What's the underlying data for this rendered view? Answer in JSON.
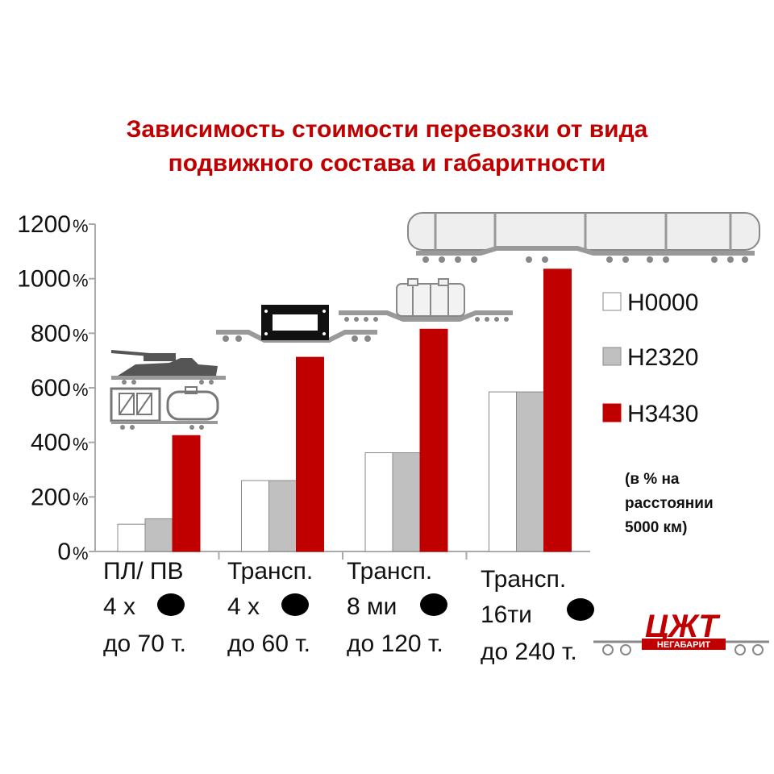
{
  "title_lines": [
    "Зависимость стоимости перевозки от вида",
    "подвижного состава и габаритности"
  ],
  "note_lines": [
    "(в % на",
    "расстоянии",
    "5000 км)"
  ],
  "logo_text": "ЦЖТ",
  "logo_subtext": "НЕГАБАРИТ",
  "colors": {
    "title": "#c00000",
    "h0000": "#ffffff",
    "h2320": "#c0c0c0",
    "h3430": "#c00000",
    "axis": "#aaaaaa"
  },
  "chart_data": {
    "type": "bar",
    "title": "Зависимость стоимости перевозки от вида подвижного состава и габаритности",
    "ylim": [
      0,
      1200
    ],
    "yticks": [
      0,
      200,
      400,
      600,
      800,
      1000,
      1200
    ],
    "ytick_number_labels": [
      "0",
      "200",
      "400",
      "600",
      "800",
      "1000",
      "1200"
    ],
    "ytick_unit": "%",
    "categories": [
      [
        "ПЛ/ ПВ",
        "4 х",
        "до 70 т."
      ],
      [
        "Трансп.",
        "4 х",
        "до 60 т."
      ],
      [
        "Трансп.",
        "8 ми",
        "до 120 т."
      ],
      [
        "Трансп.",
        "16ти",
        "до 240 т."
      ]
    ],
    "series": [
      {
        "name": "Н0000",
        "color": "#ffffff",
        "values": [
          100,
          260,
          362,
          585
        ]
      },
      {
        "name": "Н2320",
        "color": "#c0c0c0",
        "values": [
          120,
          260,
          362,
          585
        ]
      },
      {
        "name": "Н3430",
        "color": "#c00000",
        "values": [
          425,
          712,
          815,
          1035
        ]
      }
    ],
    "legend_position": "right",
    "grid": false
  },
  "icons": [
    "tank-on-flatcar-icon",
    "container-and-tank-wagon-icon",
    "transporter-4-axle-icon",
    "transporter-8-axle-icon",
    "transporter-16-axle-icon",
    "axle-marker-icon",
    "railcar-logo-icon"
  ]
}
